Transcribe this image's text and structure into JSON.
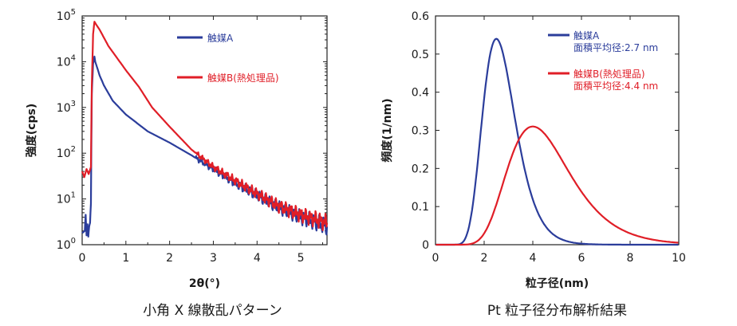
{
  "chart_data": [
    {
      "type": "line",
      "yscale": "log",
      "xlabel": "2θ(°)",
      "ylabel": "強度(cps)",
      "xlim": [
        0,
        5.6
      ],
      "ylim": [
        1,
        100000
      ],
      "xticks": [
        "0",
        "1",
        "2",
        "3",
        "4",
        "5"
      ],
      "yticks": [
        {
          "base": "10",
          "exp": "0"
        },
        {
          "base": "10",
          "exp": "1"
        },
        {
          "base": "10",
          "exp": "2"
        },
        {
          "base": "10",
          "exp": "3"
        },
        {
          "base": "10",
          "exp": "4"
        },
        {
          "base": "10",
          "exp": "5"
        }
      ],
      "caption": "小角 X 線散乱パターン",
      "series": [
        {
          "name": "触媒A",
          "color": "#2b3d9b",
          "legend": [
            "触媒A"
          ],
          "points": [
            [
              0.0,
              1.8
            ],
            [
              0.06,
              2.0
            ],
            [
              0.08,
              4.5
            ],
            [
              0.1,
              1.6
            ],
            [
              0.12,
              2.8
            ],
            [
              0.14,
              1.5
            ],
            [
              0.16,
              2.5
            ],
            [
              0.18,
              3.0
            ],
            [
              0.2,
              8.0
            ],
            [
              0.22,
              2000
            ],
            [
              0.25,
              9000
            ],
            [
              0.28,
              13000
            ],
            [
              0.3,
              10000
            ],
            [
              0.4,
              5000
            ],
            [
              0.5,
              3000
            ],
            [
              0.7,
              1400
            ],
            [
              1.0,
              700
            ],
            [
              1.5,
              300
            ],
            [
              2.0,
              170
            ],
            [
              2.5,
              90
            ],
            [
              3.0,
              45
            ],
            [
              3.5,
              22
            ],
            [
              4.0,
              12
            ],
            [
              4.5,
              6.5
            ],
            [
              5.0,
              4
            ],
            [
              5.6,
              2.5
            ]
          ]
        },
        {
          "name": "触媒B(熱処理品)",
          "color": "#e01e27",
          "legend": [
            "触媒B(熱処理品)"
          ],
          "points": [
            [
              0.0,
              40
            ],
            [
              0.05,
              30
            ],
            [
              0.1,
              45
            ],
            [
              0.15,
              35
            ],
            [
              0.2,
              50
            ],
            [
              0.22,
              3000
            ],
            [
              0.25,
              40000
            ],
            [
              0.28,
              75000
            ],
            [
              0.32,
              65000
            ],
            [
              0.4,
              50000
            ],
            [
              0.6,
              22000
            ],
            [
              0.8,
              12000
            ],
            [
              1.0,
              6500
            ],
            [
              1.3,
              2800
            ],
            [
              1.6,
              1000
            ],
            [
              2.0,
              380
            ],
            [
              2.5,
              120
            ],
            [
              3.0,
              50
            ],
            [
              3.5,
              25
            ],
            [
              4.0,
              13
            ],
            [
              4.5,
              7
            ],
            [
              5.0,
              4.5
            ],
            [
              5.6,
              3
            ]
          ]
        }
      ]
    },
    {
      "type": "line",
      "xlabel": "粒子径(nm)",
      "ylabel": "頻度(1/nm)",
      "xlim": [
        0,
        10
      ],
      "ylim": [
        0,
        0.6
      ],
      "xticks": [
        "0",
        "2",
        "4",
        "6",
        "8",
        "10"
      ],
      "yticks": [
        "0",
        "0.1",
        "0.2",
        "0.3",
        "0.4",
        "0.5",
        "0.6"
      ],
      "caption": "Pt 粒子径分布解析結果",
      "series": [
        {
          "name": "触媒A",
          "color": "#2b3d9b",
          "legend": [
            "触媒A",
            "面積平均径:2.7 nm"
          ],
          "lognorm": {
            "mode": 2.5,
            "sigma": 0.27,
            "peak": 0.54
          }
        },
        {
          "name": "触媒B(熱処理品)",
          "color": "#e01e27",
          "legend": [
            "触媒B(熱処理品)",
            "面積平均径:4.4 nm"
          ],
          "lognorm": {
            "mode": 4.0,
            "sigma": 0.32,
            "peak": 0.31
          }
        }
      ]
    }
  ]
}
